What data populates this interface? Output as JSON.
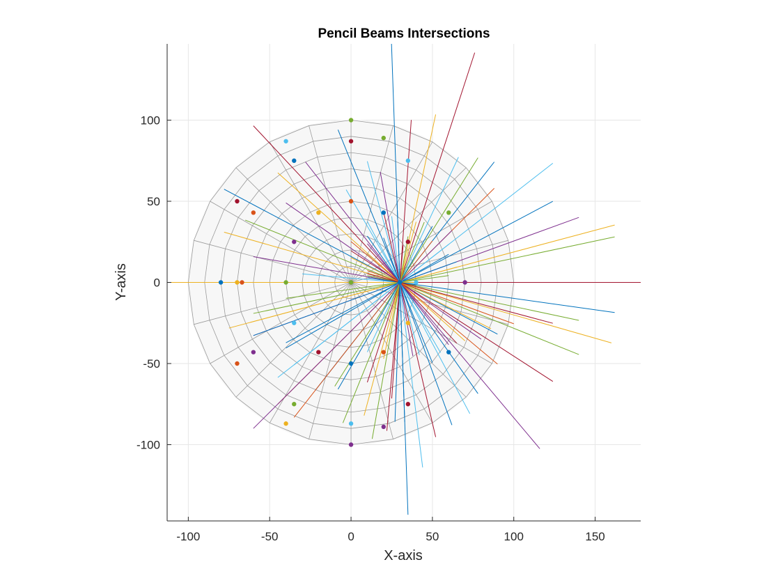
{
  "chart_data": {
    "type": "line",
    "title": "Pencil Beams Intersections",
    "xlabel": "X-axis",
    "ylabel": "Y-axis",
    "xlim": [
      -113,
      178
    ],
    "ylim": [
      -147,
      147
    ],
    "xticks": [
      -100,
      -50,
      0,
      50,
      100,
      150
    ],
    "yticks": [
      -100,
      -50,
      0,
      50,
      100
    ],
    "xtick_labels": [
      "-100",
      "-50",
      "0",
      "50",
      "100",
      "150"
    ],
    "ytick_labels": [
      "-100",
      "-50",
      "0",
      "50",
      "100"
    ],
    "grid": true,
    "focus_point": [
      30,
      0
    ],
    "polar_grid": {
      "radii": [
        10,
        20,
        30,
        40,
        50,
        60,
        70,
        80,
        90,
        100
      ],
      "angular_step_deg": 15
    },
    "beams": [
      {
        "angle": 0,
        "color": "#A2142F",
        "x1": -113,
        "x2": 178
      },
      {
        "angle": 12,
        "color": "#77AC30",
        "x1": -60,
        "x2": 162
      },
      {
        "angle": 15,
        "color": "#EDB120",
        "x1": -62,
        "x2": 162
      },
      {
        "angle": 20,
        "color": "#7E2F8E",
        "x1": -60,
        "x2": 140
      },
      {
        "angle": 28,
        "color": "#0072BD",
        "x1": -40,
        "x2": 124
      },
      {
        "angle": 38,
        "color": "#4DBEEE",
        "x1": -35,
        "x2": 124
      },
      {
        "angle": 45,
        "color": "#D95319",
        "x1": -45,
        "x2": 88
      },
      {
        "angle": 52,
        "color": "#0072BD",
        "x1": -22,
        "x2": 88
      },
      {
        "angle": 58,
        "color": "#77AC30",
        "x1": -10,
        "x2": 78
      },
      {
        "angle": 65,
        "color": "#4DBEEE",
        "x1": 10,
        "x2": 66
      },
      {
        "angle": 72,
        "color": "#A2142F",
        "x1": 10,
        "x2": 76
      },
      {
        "angle": 78,
        "color": "#EDB120",
        "x1": 20,
        "x2": 52
      },
      {
        "angle": 86,
        "color": "#A2142F",
        "x1": 25,
        "x2": 37
      },
      {
        "angle": 92,
        "color": "#0072BD",
        "x1": 35,
        "x2": 23
      },
      {
        "angle": 100,
        "color": "#7E2F8E",
        "x1": 38,
        "x2": 18
      },
      {
        "angle": 105,
        "color": "#4DBEEE",
        "x1": 42,
        "x2": 10
      },
      {
        "angle": 112,
        "color": "#0072BD",
        "x1": 50,
        "x2": -8
      },
      {
        "angle": 120,
        "color": "#4DBEEE",
        "x1": 55,
        "x2": -3
      },
      {
        "angle": 128,
        "color": "#7E2F8E",
        "x1": 60,
        "x2": -28
      },
      {
        "angle": 133,
        "color": "#A2142F",
        "x1": 65,
        "x2": -60
      },
      {
        "angle": 138,
        "color": "#EDB120",
        "x1": 70,
        "x2": -45
      },
      {
        "angle": 145,
        "color": "#7E2F8E",
        "x1": 80,
        "x2": -40
      },
      {
        "angle": 152,
        "color": "#0072BD",
        "x1": 90,
        "x2": -78
      },
      {
        "angle": 158,
        "color": "#77AC30",
        "x1": 140,
        "x2": -65
      },
      {
        "angle": 164,
        "color": "#EDB120",
        "x1": 160,
        "x2": -78
      },
      {
        "angle": 170,
        "color": "#7E2F8E",
        "x1": 40,
        "x2": -60
      },
      {
        "angle": 175,
        "color": "#4DBEEE",
        "x1": 40,
        "x2": -30
      },
      {
        "angle": 180,
        "color": "#EDB120",
        "x1": 40,
        "x2": -113
      },
      {
        "angle": 188,
        "color": "#77AC30",
        "x1": 60,
        "x2": -40
      },
      {
        "angle": 195,
        "color": "#EDB120",
        "x1": 65,
        "x2": -75
      },
      {
        "angle": 200,
        "color": "#0072BD",
        "x1": 65,
        "x2": -60
      },
      {
        "angle": 210,
        "color": "#0072BD",
        "x1": 60,
        "x2": -40
      },
      {
        "angle": 218,
        "color": "#4DBEEE",
        "x1": 60,
        "x2": -45
      },
      {
        "angle": 225,
        "color": "#7E2F8E",
        "x1": 62,
        "x2": -60
      },
      {
        "angle": 232,
        "color": "#D95319",
        "x1": 50,
        "x2": -35
      },
      {
        "angle": 240,
        "color": "#0072BD",
        "x1": 50,
        "x2": -8
      },
      {
        "angle": 248,
        "color": "#77AC30",
        "x1": 45,
        "x2": -5
      },
      {
        "angle": 255,
        "color": "#EDB120",
        "x1": 40,
        "x2": 8
      },
      {
        "angle": 260,
        "color": "#77AC30",
        "x1": 35,
        "x2": 13
      },
      {
        "angle": 265,
        "color": "#A2142F",
        "x1": 32,
        "x2": 22
      },
      {
        "angle": 268,
        "color": "#0072BD",
        "x1": 30,
        "x2": 27
      },
      {
        "angle": 272,
        "color": "#0072BD",
        "x1": 28,
        "x2": 33
      },
      {
        "angle": 277,
        "color": "#4DBEEE",
        "x1": 25,
        "x2": 44
      },
      {
        "angle": 283,
        "color": "#A2142F",
        "x1": 20,
        "x2": 52
      },
      {
        "angle": 290,
        "color": "#0072BD",
        "x1": 20,
        "x2": 62
      },
      {
        "angle": 298,
        "color": "#4DBEEE",
        "x1": 10,
        "x2": 73
      },
      {
        "angle": 305,
        "color": "#0072BD",
        "x1": 10,
        "x2": 78
      },
      {
        "angle": 310,
        "color": "#7E2F8E",
        "x1": 10,
        "x2": 116
      },
      {
        "angle": 320,
        "color": "#D95319",
        "x1": 0,
        "x2": 90
      },
      {
        "angle": 327,
        "color": "#A2142F",
        "x1": 0,
        "x2": 124
      },
      {
        "angle": 333,
        "color": "#EDB120",
        "x1": 0,
        "x2": 86
      },
      {
        "angle": 340,
        "color": "#D95319",
        "x1": 10,
        "x2": 100
      },
      {
        "angle": 348,
        "color": "#77AC30",
        "x1": 10,
        "x2": 140
      },
      {
        "angle": 352,
        "color": "#0072BD",
        "x1": 10,
        "x2": 162
      },
      {
        "angle": 345,
        "color": "#A2142F",
        "x1": 10,
        "x2": 124
      }
    ],
    "markers": [
      {
        "x": 0,
        "y": 100,
        "color": "#77AC30"
      },
      {
        "x": 0,
        "y": 87,
        "color": "#A2142F"
      },
      {
        "x": 20,
        "y": 89,
        "color": "#77AC30"
      },
      {
        "x": 35,
        "y": 75,
        "color": "#4DBEEE"
      },
      {
        "x": -40,
        "y": 87,
        "color": "#4DBEEE"
      },
      {
        "x": -35,
        "y": 75,
        "color": "#0072BD"
      },
      {
        "x": -70,
        "y": 50,
        "color": "#A2142F"
      },
      {
        "x": -60,
        "y": 43,
        "color": "#D95319"
      },
      {
        "x": -20,
        "y": 43,
        "color": "#EDB120"
      },
      {
        "x": 0,
        "y": 50,
        "color": "#D95319"
      },
      {
        "x": 20,
        "y": 43,
        "color": "#0072BD"
      },
      {
        "x": 60,
        "y": 43,
        "color": "#77AC30"
      },
      {
        "x": -35,
        "y": 25,
        "color": "#7E2F8E"
      },
      {
        "x": 35,
        "y": 25,
        "color": "#A2142F"
      },
      {
        "x": -80,
        "y": 0,
        "color": "#0072BD"
      },
      {
        "x": -70,
        "y": 0,
        "color": "#EDB120"
      },
      {
        "x": -67,
        "y": 0,
        "color": "#D95319"
      },
      {
        "x": -40,
        "y": 0,
        "color": "#77AC30"
      },
      {
        "x": 0,
        "y": 0,
        "color": "#77AC30"
      },
      {
        "x": 30,
        "y": 0,
        "color": "#0072BD"
      },
      {
        "x": 40,
        "y": 0,
        "color": "#4DBEEE"
      },
      {
        "x": 70,
        "y": 0,
        "color": "#7E2F8E"
      },
      {
        "x": -35,
        "y": -25,
        "color": "#4DBEEE"
      },
      {
        "x": 35,
        "y": -25,
        "color": "#EDB120"
      },
      {
        "x": -60,
        "y": -43,
        "color": "#7E2F8E"
      },
      {
        "x": -20,
        "y": -43,
        "color": "#A2142F"
      },
      {
        "x": 20,
        "y": -43,
        "color": "#D95319"
      },
      {
        "x": 60,
        "y": -43,
        "color": "#0072BD"
      },
      {
        "x": -70,
        "y": -50,
        "color": "#D95319"
      },
      {
        "x": 0,
        "y": -50,
        "color": "#0072BD"
      },
      {
        "x": -35,
        "y": -75,
        "color": "#77AC30"
      },
      {
        "x": 35,
        "y": -75,
        "color": "#A2142F"
      },
      {
        "x": -40,
        "y": -87,
        "color": "#EDB120"
      },
      {
        "x": 0,
        "y": -87,
        "color": "#4DBEEE"
      },
      {
        "x": 20,
        "y": -89,
        "color": "#7E2F8E"
      },
      {
        "x": 0,
        "y": -100,
        "color": "#7E2F8E"
      }
    ]
  }
}
